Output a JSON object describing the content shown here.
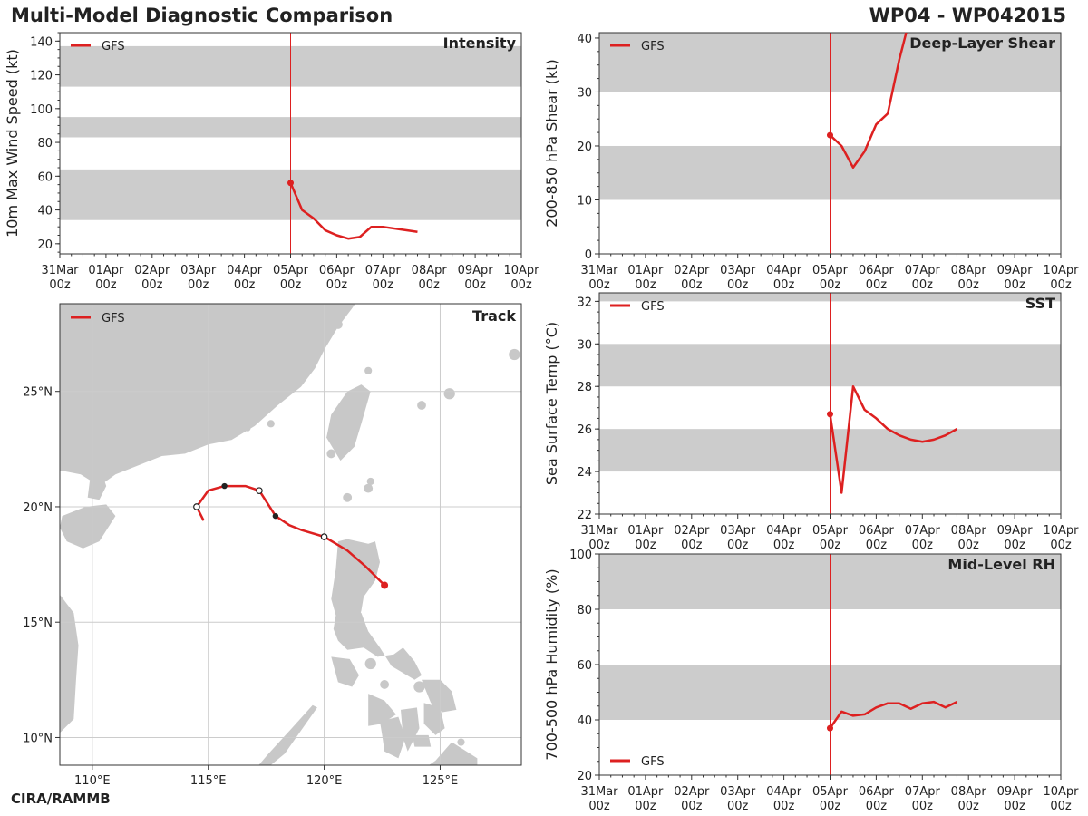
{
  "header": {
    "title": "Multi-Model Diagnostic Comparison",
    "storm_id": "WP04 - WP042015",
    "credit": "CIRA/RAMMB"
  },
  "colors": {
    "series": "#dd2020",
    "band": "#cccccc",
    "land": "#c8c8c8",
    "grid": "#cccccc",
    "axis": "#333333"
  },
  "time_axis": {
    "ticks": [
      "31Mar 00z",
      "01Apr 00z",
      "02Apr 00z",
      "03Apr 00z",
      "04Apr 00z",
      "05Apr 00z",
      "06Apr 00z",
      "07Apr 00z",
      "08Apr 00z",
      "09Apr 00z",
      "10Apr 00z"
    ],
    "xlim_days": [
      0,
      10
    ],
    "init_day": 5
  },
  "chart_data": [
    {
      "id": "intensity",
      "type": "line",
      "title": "Intensity",
      "ylabel": "10m Max Wind Speed (kt)",
      "ylim": [
        14,
        145
      ],
      "yticks": [
        20,
        40,
        60,
        80,
        100,
        120,
        140
      ],
      "bands": [
        [
          34,
          64
        ],
        [
          83,
          95
        ],
        [
          113,
          137
        ]
      ],
      "legend_position": "top-left",
      "series": [
        {
          "name": "GFS",
          "x": [
            5,
            5.25,
            5.5,
            5.75,
            6,
            6.25,
            6.5,
            6.75,
            7,
            7.25,
            7.5,
            7.75
          ],
          "y": [
            56,
            40,
            35,
            28,
            25,
            23,
            24,
            30,
            30,
            29,
            28,
            27
          ]
        }
      ]
    },
    {
      "id": "shear",
      "type": "line",
      "title": "Deep-Layer Shear",
      "ylabel": "200-850 hPa Shear (kt)",
      "ylim": [
        0,
        41
      ],
      "yticks": [
        0,
        10,
        20,
        30,
        40
      ],
      "bands": [
        [
          10,
          20
        ],
        [
          30,
          41
        ]
      ],
      "legend_position": "top-left",
      "series": [
        {
          "name": "GFS",
          "x": [
            5,
            5.25,
            5.5,
            5.75,
            6,
            6.25,
            6.5,
            6.65
          ],
          "y": [
            22,
            20,
            16,
            19,
            24,
            26,
            36,
            41
          ]
        }
      ]
    },
    {
      "id": "sst",
      "type": "line",
      "title": "SST",
      "ylabel": "Sea Surface Temp (°C)",
      "ylim": [
        22,
        32.4
      ],
      "yticks": [
        22,
        24,
        26,
        28,
        30,
        32
      ],
      "bands": [
        [
          24,
          26
        ],
        [
          28,
          30
        ],
        [
          32,
          32.4
        ]
      ],
      "legend_position": "top-left",
      "series": [
        {
          "name": "GFS",
          "x": [
            5,
            5.25,
            5.5,
            5.75,
            6,
            6.25,
            6.5,
            6.75,
            7,
            7.25,
            7.5,
            7.75
          ],
          "y": [
            26.7,
            23,
            28,
            26.9,
            26.5,
            26,
            25.7,
            25.5,
            25.4,
            25.5,
            25.7,
            26.0
          ]
        }
      ]
    },
    {
      "id": "rh",
      "type": "line",
      "title": "Mid-Level RH",
      "ylabel": "700-500 hPa Humidity (%)",
      "ylim": [
        20,
        100
      ],
      "yticks": [
        20,
        40,
        60,
        80,
        100
      ],
      "bands": [
        [
          40,
          60
        ],
        [
          80,
          100
        ]
      ],
      "legend_position": "bottom-left",
      "series": [
        {
          "name": "GFS",
          "x": [
            5,
            5.25,
            5.5,
            5.75,
            6,
            6.25,
            6.5,
            6.75,
            7,
            7.25,
            7.5,
            7.75
          ],
          "y": [
            37,
            43,
            41.5,
            42,
            44.5,
            46,
            46,
            44,
            46,
            46.5,
            44.5,
            46.5
          ]
        }
      ]
    },
    {
      "id": "track",
      "type": "line",
      "title": "Track",
      "xlabel": "",
      "ylabel": "",
      "xlim": [
        108.6,
        128.5
      ],
      "ylim": [
        8.8,
        28.8
      ],
      "xticks": [
        110,
        115,
        120,
        125
      ],
      "xtick_labels": [
        "110°E",
        "115°E",
        "120°E",
        "125°E"
      ],
      "yticks": [
        10,
        15,
        20,
        25
      ],
      "ytick_labels": [
        "10°N",
        "15°N",
        "20°N",
        "25°N"
      ],
      "legend_position": "top-left",
      "series": [
        {
          "name": "GFS",
          "lon": [
            122.6,
            121.8,
            121.0,
            120.0,
            119.0,
            118.5,
            117.9,
            117.2,
            116.6,
            115.7,
            115.0,
            114.5,
            114.8
          ],
          "lat": [
            16.6,
            17.4,
            18.1,
            18.7,
            19.0,
            19.2,
            19.6,
            20.7,
            20.9,
            20.9,
            20.7,
            20.0,
            19.4
          ],
          "markers": [
            {
              "lon": 122.6,
              "lat": 16.6,
              "style": "start"
            },
            {
              "lon": 120.0,
              "lat": 18.7,
              "style": "open"
            },
            {
              "lon": 117.9,
              "lat": 19.6,
              "style": "filled"
            },
            {
              "lon": 117.2,
              "lat": 20.7,
              "style": "open"
            },
            {
              "lon": 115.7,
              "lat": 20.9,
              "style": "filled"
            },
            {
              "lon": 114.5,
              "lat": 20.0,
              "style": "open"
            }
          ]
        }
      ]
    }
  ]
}
